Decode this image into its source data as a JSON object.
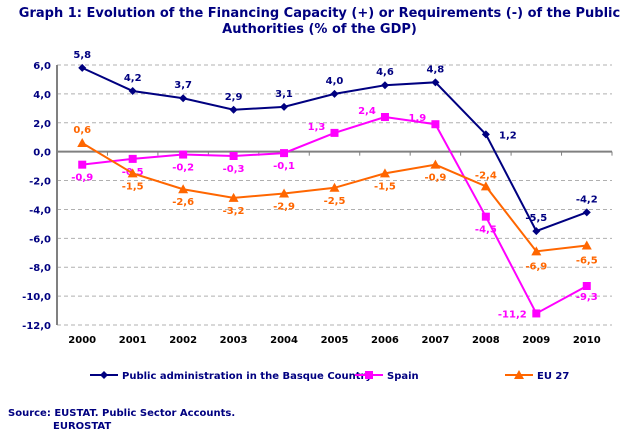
{
  "chart_data": {
    "type": "line",
    "title": "Graph 1: Evolution of the Financing Capacity (+) or Requirements (-) of the Public Authorities (% of the GDP)",
    "categories": [
      "2000",
      "2001",
      "2002",
      "2003",
      "2004",
      "2005",
      "2006",
      "2007",
      "2008",
      "2009",
      "2010"
    ],
    "ylim": [
      -12,
      6
    ],
    "yticks": [
      "6,0",
      "4,0",
      "2,0",
      "0,0",
      "-2,0",
      "-4,0",
      "-6,0",
      "-8,0",
      "-10,0",
      "-12,0"
    ],
    "grid": true,
    "legend_position": "bottom",
    "series": [
      {
        "name": "Public administration in the Basque Country",
        "color": "#000080",
        "marker": "diamond",
        "values": [
          5.8,
          4.2,
          3.7,
          2.9,
          3.1,
          4.0,
          4.6,
          4.8,
          1.2,
          -5.5,
          -4.2
        ]
      },
      {
        "name": "Spain",
        "color": "#FF00FF",
        "marker": "square",
        "values": [
          -0.9,
          -0.5,
          -0.2,
          -0.3,
          -0.1,
          1.3,
          2.4,
          1.9,
          -4.5,
          -11.2,
          -9.3
        ]
      },
      {
        "name": "EU 27",
        "color": "#FF6600",
        "marker": "triangle",
        "values": [
          0.6,
          -1.5,
          -2.6,
          -3.2,
          -2.9,
          -2.5,
          -1.5,
          -0.9,
          -2.4,
          -6.9,
          -6.5
        ]
      }
    ]
  },
  "source": {
    "line1": "Source: EUSTAT. Public Sector Accounts.",
    "line2": "EUROSTAT"
  }
}
